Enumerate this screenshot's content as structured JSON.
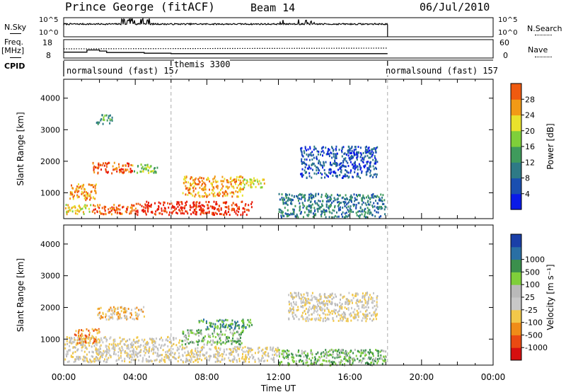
{
  "header": {
    "title": "Prince George (fitACF)",
    "beam": "Beam 14",
    "date": "06/Jul/2010"
  },
  "side_labels": {
    "n_sky": "N.Sky",
    "freq": "Freq.",
    "freq_unit": "[MHz]",
    "cpid": "CPID",
    "n_search": "N.Search",
    "nave": "Nave"
  },
  "cpid_segments": [
    {
      "label": "normalsound (fast) 157",
      "start_hour": 0
    },
    {
      "label": "themis 3300",
      "start_hour": 6
    },
    {
      "label": "normalsound (fast) 157",
      "start_hour": 18
    }
  ],
  "colors": {
    "power_scale": [
      "#0a1ae8",
      "#1a4fb0",
      "#2e7a86",
      "#3f9b5c",
      "#7fcf3a",
      "#e9e22c",
      "#f29a16",
      "#ef5a10",
      "#e81a08"
    ],
    "velocity_scale": [
      "#d60f0f",
      "#ea4a12",
      "#f08c18",
      "#f2c84a",
      "#c8c8c8",
      "#b9b9b9",
      "#7fcf3a",
      "#3b8f4c",
      "#2a6fa4",
      "#1a3fa8"
    ],
    "ground_scatter": "#c0c0c0"
  },
  "chart_data": [
    {
      "type": "line",
      "name": "noise-panel",
      "left_label": "N.Sky",
      "right_label": "N.Search",
      "y_ticks_left": [
        "10^5",
        "10^0"
      ],
      "y_ticks_right": [
        "10^5",
        "10^0"
      ],
      "xlim_hours": [
        0,
        24
      ],
      "data_end_hour": 18.1,
      "baseline_level": 0.62
    },
    {
      "type": "line",
      "name": "frequency-panel",
      "left_label": "Freq. [MHz]",
      "right_label": "Nave",
      "y_ticks_left": [
        "18",
        "8"
      ],
      "y_ticks_right": [
        "60",
        "0"
      ],
      "freq_steps": [
        {
          "hours": [
            0.0,
            1.3
          ],
          "mhz": 11.2
        },
        {
          "hours": [
            1.3,
            2.0
          ],
          "mhz": 12.4
        },
        {
          "hours": [
            2.0,
            2.4
          ],
          "mhz": 11.8
        },
        {
          "hours": [
            2.4,
            4.5
          ],
          "mhz": 11.0
        },
        {
          "hours": [
            4.5,
            6.0
          ],
          "mhz": 10.6
        },
        {
          "hours": [
            6.0,
            18.1
          ],
          "mhz": 10.4
        }
      ],
      "nave_level": 30
    },
    {
      "type": "heatmap",
      "name": "power-panel",
      "ylabel": "Slant Range [km]",
      "y_ticks": [
        1000,
        2000,
        3000,
        4000
      ],
      "ylim": [
        180,
        4600
      ],
      "colorbar_label": "Power [dB]",
      "colorbar_ticks": [
        4,
        8,
        12,
        16,
        20,
        24,
        28
      ],
      "regions": [
        {
          "hours": [
            0.0,
            1.5
          ],
          "range": [
            350,
            650
          ],
          "level": 5
        },
        {
          "hours": [
            1.5,
            4.0
          ],
          "range": [
            350,
            650
          ],
          "level": 7
        },
        {
          "hours": [
            4.0,
            10.5
          ],
          "range": [
            330,
            750
          ],
          "level": 8
        },
        {
          "hours": [
            0.3,
            1.8
          ],
          "range": [
            800,
            1300
          ],
          "level": 6
        },
        {
          "hours": [
            1.6,
            3.8
          ],
          "range": [
            1650,
            2000
          ],
          "level": 7
        },
        {
          "hours": [
            3.8,
            5.2
          ],
          "range": [
            1650,
            1950
          ],
          "level": 4
        },
        {
          "hours": [
            6.6,
            10.0
          ],
          "range": [
            900,
            1550
          ],
          "level": 6
        },
        {
          "hours": [
            10.0,
            11.2
          ],
          "range": [
            1200,
            1500
          ],
          "level": 5
        },
        {
          "hours": [
            12.0,
            18.0
          ],
          "range": [
            250,
            1000
          ],
          "level": 2
        },
        {
          "hours": [
            13.2,
            17.5
          ],
          "range": [
            1500,
            2500
          ],
          "level": 1
        },
        {
          "hours": [
            1.8,
            2.7
          ],
          "range": [
            3200,
            3500
          ],
          "level": 3
        }
      ]
    },
    {
      "type": "heatmap",
      "name": "velocity-panel",
      "ylabel": "Slant Range [km]",
      "y_ticks": [
        1000,
        2000,
        3000,
        4000
      ],
      "ylim": [
        180,
        4600
      ],
      "colorbar_label": "Velocity [m s⁻¹]",
      "colorbar_ticks": [
        -1000,
        -500,
        -100,
        -25,
        25,
        100,
        500,
        1000
      ],
      "xlabel": "Time UT",
      "x_ticks": [
        "00:00",
        "04:00",
        "08:00",
        "12:00",
        "16:00",
        "20:00",
        "00:00"
      ],
      "regions": [
        {
          "hours": [
            0.0,
            6.5
          ],
          "range": [
            300,
            1100
          ],
          "level": 4
        },
        {
          "hours": [
            6.5,
            12.0
          ],
          "range": [
            300,
            800
          ],
          "level": 4
        },
        {
          "hours": [
            0.5,
            2.0
          ],
          "range": [
            900,
            1350
          ],
          "level": 2
        },
        {
          "hours": [
            1.8,
            4.5
          ],
          "range": [
            1650,
            2050
          ],
          "level": 3
        },
        {
          "hours": [
            7.5,
            10.5
          ],
          "range": [
            1350,
            1650
          ],
          "level": 7
        },
        {
          "hours": [
            6.5,
            10.0
          ],
          "range": [
            850,
            1350
          ],
          "level": 6
        },
        {
          "hours": [
            12.0,
            18.0
          ],
          "range": [
            200,
            700
          ],
          "level": 6
        },
        {
          "hours": [
            12.5,
            17.5
          ],
          "range": [
            1600,
            2500
          ],
          "level": 4
        }
      ]
    }
  ]
}
